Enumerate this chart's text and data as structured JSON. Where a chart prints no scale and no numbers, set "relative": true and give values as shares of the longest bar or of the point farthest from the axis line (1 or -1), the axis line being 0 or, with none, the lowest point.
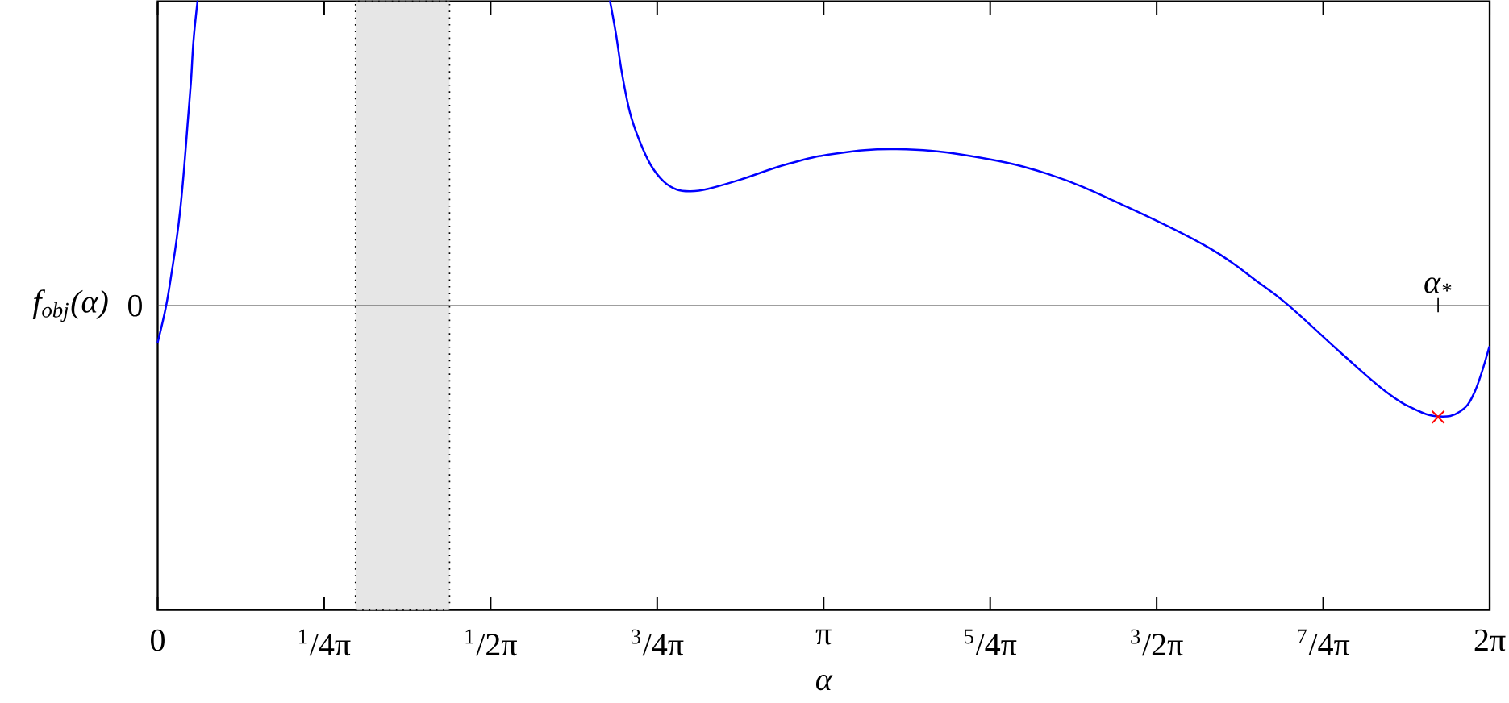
{
  "chart_data": {
    "type": "line",
    "relative": true,
    "xlabel": "α",
    "ylabel": "f$_{obj}$(α)",
    "xlim": [
      0,
      6.2832
    ],
    "xticks": [
      0,
      {
        "value": 0.7854,
        "label": "$^{1}$/4π"
      },
      {
        "value": 1.5708,
        "label": "$^{1}$/2π"
      },
      {
        "value": 2.3562,
        "label": "$^{3}$/4π"
      },
      {
        "value": 3.1416,
        "label": "π"
      },
      {
        "value": 3.927,
        "label": "$^{5}$/4π"
      },
      {
        "value": 4.7124,
        "label": "$^{3}$/2π"
      },
      {
        "value": 5.4978,
        "label": "$^{7}$/4π"
      },
      {
        "value": 6.2832,
        "label": "2π"
      }
    ],
    "series": [
      {
        "color": "#0000ff",
        "x": [
          0,
          0.04,
          0.068,
          0.087,
          0.106,
          0.125,
          0.141,
          0.157,
          0.169,
          0.188,
          null,
          2.134,
          2.161,
          2.191,
          2.228,
          2.274,
          2.326,
          2.387,
          2.447,
          2.514,
          2.597,
          2.748,
          2.974,
          3.2,
          3.486,
          3.822,
          4.203,
          4.583,
          4.964,
          5.199,
          5.336,
          5.589,
          5.796,
          5.935,
          6.046,
          6.143,
          6.212,
          6.281
        ],
        "values": [
          -0.121,
          0,
          0.118,
          0.206,
          0.312,
          0.454,
          0.596,
          0.736,
          0.87,
          1,
          null,
          1,
          0.896,
          0.76,
          0.634,
          0.54,
          0.462,
          0.408,
          0.382,
          0.376,
          0.384,
          0.414,
          0.466,
          0.5,
          0.514,
          0.493,
          0.432,
          0.321,
          0.188,
          0.073,
          0,
          -0.16,
          -0.284,
          -0.342,
          -0.364,
          -0.348,
          -0.284,
          -0.136
        ]
      },
      {
        "type": "scatter",
        "color": "#ff0000",
        "marker": "cross",
        "x": [
          6.04
        ],
        "values": [
          -0.366
        ]
      }
    ],
    "ref_lines": [
      {
        "axis": "y",
        "value": 0,
        "label": "0",
        "color": "#404040"
      }
    ],
    "bands": [
      {
        "axis": "x",
        "from": 0.933,
        "to": 1.377,
        "color": "#e6e6e6"
      }
    ],
    "annotations": [
      {
        "text": "α$_{*}$",
        "x": 6.04,
        "y": 0
      }
    ]
  }
}
